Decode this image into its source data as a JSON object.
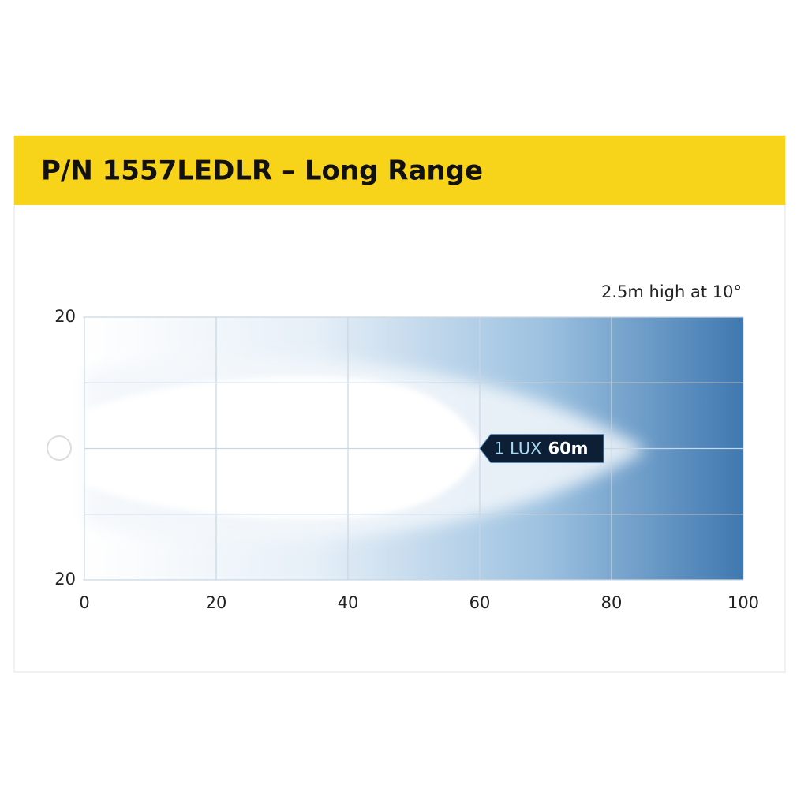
{
  "chart_data": {
    "type": "beam",
    "title": "P/N 1557LEDLR – Long Range",
    "subtitle": "2.5m high at 10°",
    "xlim": [
      0,
      100
    ],
    "xticks": [
      0,
      20,
      40,
      60,
      80,
      100
    ],
    "ylim": [
      -20,
      20
    ],
    "yticks": [
      20,
      {
        "value": -20,
        "label": "20"
      }
    ],
    "ygrid": [
      20,
      10,
      0,
      -10,
      -20
    ],
    "annotation": {
      "label": "1 LUX",
      "distance": 60,
      "distance_label": "60m"
    },
    "header_color": "#f7d31a",
    "beam_color": "#3f78b0"
  }
}
